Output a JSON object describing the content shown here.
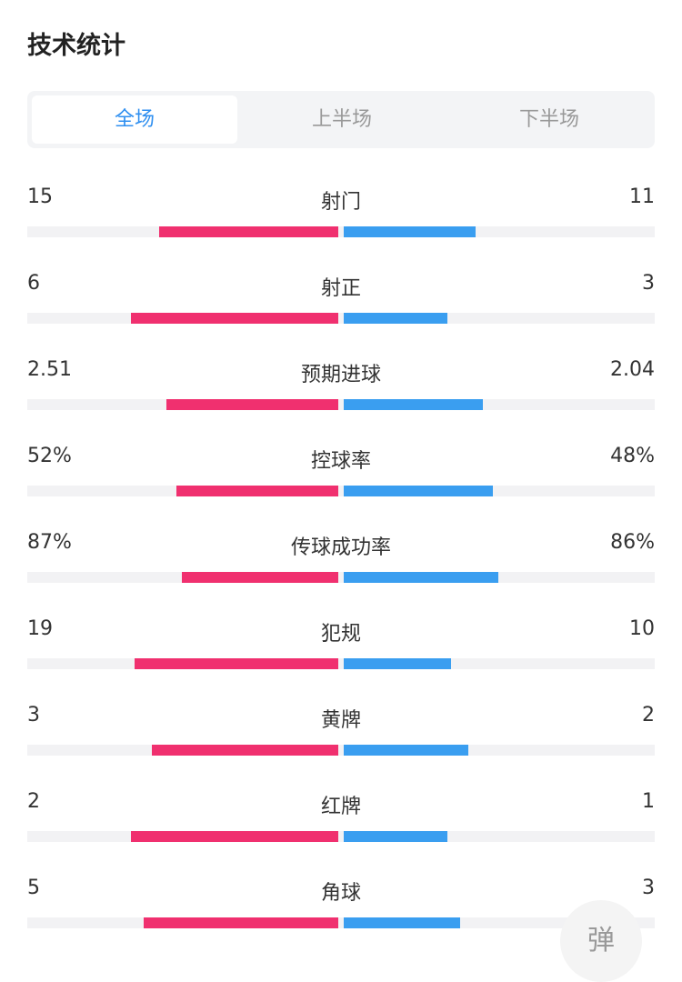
{
  "header": {
    "title": "技术统计"
  },
  "tabs": {
    "items": [
      "全场",
      "上半场",
      "下半场"
    ],
    "active": 0
  },
  "stats": [
    {
      "name": "射门",
      "home": 15,
      "away": 11
    },
    {
      "name": "射正",
      "home": 6,
      "away": 3
    },
    {
      "name": "预期进球",
      "home": 2.51,
      "away": 2.04
    },
    {
      "name": "控球率",
      "home": 52,
      "away": 48,
      "home_label": "52%",
      "away_label": "48%"
    },
    {
      "name": "传球成功率",
      "home": 87,
      "away": 86,
      "home_label": "87%",
      "away_label": "86%"
    },
    {
      "name": "犯规",
      "home": 19,
      "away": 10
    },
    {
      "name": "黄牌",
      "home": 3,
      "away": 2
    },
    {
      "name": "红牌",
      "home": 2,
      "away": 1
    },
    {
      "name": "角球",
      "home": 5,
      "away": 3
    }
  ],
  "colors": {
    "home": "#f0306f",
    "away": "#3a9ef0"
  },
  "float_button": "弹"
}
